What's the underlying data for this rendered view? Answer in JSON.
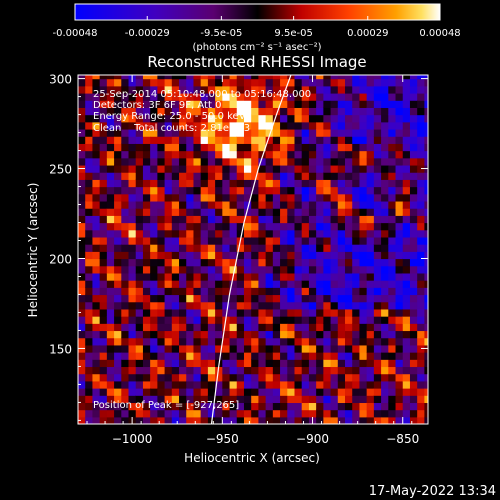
{
  "colorbar": {
    "tick_labels": [
      "-0.00048",
      "-0.00029",
      "-9.5e-05",
      "9.5e-05",
      "0.00029",
      "0.00048"
    ],
    "tick_values": [
      -0.00048,
      -0.00029,
      -9.5e-05,
      9.5e-05,
      0.00029,
      0.00048
    ],
    "range": [
      -0.00048,
      0.00048
    ],
    "units_label": "(photons cm⁻² s⁻¹ asec⁻²)",
    "colors": [
      "#0000ff",
      "#3a00b8",
      "#6a0080",
      "#000000",
      "#c00000",
      "#ff3000",
      "#ff9000",
      "#ffe060",
      "#ffffff"
    ]
  },
  "chart_data": {
    "type": "heatmap",
    "title": "Reconstructed RHESSI Image",
    "xlabel": "Heliocentric X (arcsec)",
    "ylabel": "Heliocentric Y (arcsec)",
    "xlim": [
      -1030,
      -836
    ],
    "ylim": [
      108,
      302
    ],
    "x_ticks": [
      -1000,
      -950,
      -900,
      -850
    ],
    "y_ticks": [
      150,
      200,
      250,
      300
    ],
    "x_tick_labels": [
      "−1000",
      "−950",
      "−900",
      "−850"
    ],
    "y_tick_labels": [
      "150",
      "200",
      "250",
      "300"
    ],
    "annotations": [
      "25-Sep-2014 05:10:48.000 to 05:16:48.000",
      "Detectors: 3F 6F 9F, Att 0",
      "Energy Range: 25.0 - 50.0 keV",
      "Clean    Total counts: 2.81e+03"
    ],
    "peak_label": "Position of Peak = [-927,265]",
    "peak": [
      -927,
      265
    ],
    "limb_points": [
      [
        -956,
        108
      ],
      [
        -952,
        140
      ],
      [
        -946,
        180
      ],
      [
        -938,
        220
      ],
      [
        -930,
        250
      ],
      [
        -920,
        280
      ],
      [
        -912,
        302
      ]
    ],
    "pixel_size_arcsec": 4
  },
  "footer": {
    "timestamp": "17-May-2022 13:34"
  }
}
